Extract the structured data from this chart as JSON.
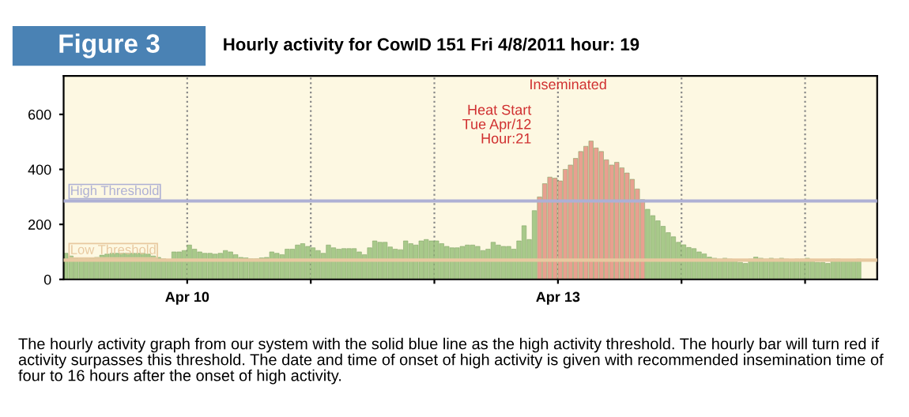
{
  "chart_data": {
    "type": "bar",
    "title": "Figure 3",
    "subtitle": "Hourly activity for CowID 151 Fri 4/8/2011 hour: 19",
    "x": [
      "2011-04-09T00:00",
      "2011-04-09T01:00",
      "2011-04-09T02:00",
      "2011-04-09T03:00",
      "2011-04-09T04:00",
      "2011-04-09T05:00",
      "2011-04-09T06:00",
      "2011-04-09T07:00",
      "2011-04-09T08:00",
      "2011-04-09T09:00",
      "2011-04-09T10:00",
      "2011-04-09T11:00",
      "2011-04-09T12:00",
      "2011-04-09T13:00",
      "2011-04-09T14:00",
      "2011-04-09T15:00",
      "2011-04-09T16:00",
      "2011-04-09T17:00",
      "2011-04-09T18:00",
      "2011-04-09T19:00",
      "2011-04-09T20:00",
      "2011-04-09T21:00",
      "2011-04-09T22:00",
      "2011-04-09T23:00",
      "2011-04-10T00:00",
      "2011-04-10T01:00",
      "2011-04-10T02:00",
      "2011-04-10T03:00",
      "2011-04-10T04:00",
      "2011-04-10T05:00",
      "2011-04-10T06:00",
      "2011-04-10T07:00",
      "2011-04-10T08:00",
      "2011-04-10T09:00",
      "2011-04-10T10:00",
      "2011-04-10T11:00",
      "2011-04-10T12:00",
      "2011-04-10T13:00",
      "2011-04-10T14:00",
      "2011-04-10T15:00",
      "2011-04-10T16:00",
      "2011-04-10T17:00",
      "2011-04-10T18:00",
      "2011-04-10T19:00",
      "2011-04-10T20:00",
      "2011-04-10T21:00",
      "2011-04-10T22:00",
      "2011-04-10T23:00",
      "2011-04-11T00:00",
      "2011-04-11T01:00",
      "2011-04-11T02:00",
      "2011-04-11T03:00",
      "2011-04-11T04:00",
      "2011-04-11T05:00",
      "2011-04-11T06:00",
      "2011-04-11T07:00",
      "2011-04-11T08:00",
      "2011-04-11T09:00",
      "2011-04-11T10:00",
      "2011-04-11T11:00",
      "2011-04-11T12:00",
      "2011-04-11T13:00",
      "2011-04-11T14:00",
      "2011-04-11T15:00",
      "2011-04-11T16:00",
      "2011-04-11T17:00",
      "2011-04-11T18:00",
      "2011-04-11T19:00",
      "2011-04-11T20:00",
      "2011-04-11T21:00",
      "2011-04-11T22:00",
      "2011-04-11T23:00",
      "2011-04-12T00:00",
      "2011-04-12T01:00",
      "2011-04-12T02:00",
      "2011-04-12T03:00",
      "2011-04-12T04:00",
      "2011-04-12T05:00",
      "2011-04-12T06:00",
      "2011-04-12T07:00",
      "2011-04-12T08:00",
      "2011-04-12T09:00",
      "2011-04-12T10:00",
      "2011-04-12T11:00",
      "2011-04-12T12:00",
      "2011-04-12T13:00",
      "2011-04-12T14:00",
      "2011-04-12T15:00",
      "2011-04-12T16:00",
      "2011-04-12T17:00",
      "2011-04-12T18:00",
      "2011-04-12T19:00",
      "2011-04-12T20:00",
      "2011-04-12T21:00",
      "2011-04-12T22:00",
      "2011-04-12T23:00",
      "2011-04-13T00:00",
      "2011-04-13T01:00",
      "2011-04-13T02:00",
      "2011-04-13T03:00",
      "2011-04-13T04:00",
      "2011-04-13T05:00",
      "2011-04-13T06:00",
      "2011-04-13T07:00",
      "2011-04-13T08:00",
      "2011-04-13T09:00",
      "2011-04-13T10:00",
      "2011-04-13T11:00",
      "2011-04-13T12:00",
      "2011-04-13T13:00",
      "2011-04-13T14:00",
      "2011-04-13T15:00",
      "2011-04-13T16:00",
      "2011-04-13T17:00",
      "2011-04-13T18:00",
      "2011-04-13T19:00",
      "2011-04-13T20:00",
      "2011-04-13T21:00",
      "2011-04-13T22:00",
      "2011-04-13T23:00",
      "2011-04-14T00:00",
      "2011-04-14T01:00",
      "2011-04-14T02:00",
      "2011-04-14T03:00",
      "2011-04-14T04:00",
      "2011-04-14T05:00",
      "2011-04-14T06:00",
      "2011-04-14T07:00",
      "2011-04-14T08:00",
      "2011-04-14T09:00",
      "2011-04-14T10:00",
      "2011-04-14T11:00",
      "2011-04-14T12:00",
      "2011-04-14T13:00",
      "2011-04-14T14:00",
      "2011-04-14T15:00",
      "2011-04-14T16:00",
      "2011-04-14T17:00",
      "2011-04-14T18:00",
      "2011-04-14T19:00",
      "2011-04-14T20:00",
      "2011-04-14T21:00",
      "2011-04-14T22:00",
      "2011-04-14T23:00",
      "2011-04-15T00:00",
      "2011-04-15T01:00",
      "2011-04-15T02:00",
      "2011-04-15T03:00",
      "2011-04-15T04:00",
      "2011-04-15T05:00",
      "2011-04-15T06:00",
      "2011-04-15T07:00",
      "2011-04-15T08:00",
      "2011-04-15T09:00",
      "2011-04-15T10:00"
    ],
    "series": [
      {
        "color": "#a8c98a",
        "values": [
          95,
          85,
          78,
          75,
          75,
          78,
          80,
          88,
          92,
          95,
          95,
          95,
          95,
          95,
          95,
          95,
          92,
          85,
          80,
          75,
          72,
          100,
          100,
          105,
          125,
          110,
          100,
          95,
          95,
          92,
          95,
          105,
          100,
          90,
          80,
          78,
          75,
          75,
          78,
          80,
          100,
          95,
          90,
          110,
          110,
          125,
          130,
          120,
          115,
          105,
          95,
          125,
          115,
          110,
          112,
          112,
          112,
          100,
          90,
          115,
          140,
          135,
          135,
          118,
          110,
          108,
          140,
          130,
          125,
          140,
          145,
          140,
          140,
          130,
          120,
          115,
          115,
          120,
          125,
          125,
          120,
          105,
          110,
          135,
          125,
          120,
          120,
          110,
          140,
          195,
          145,
          250,
          null,
          null,
          null,
          null,
          null,
          null,
          null,
          null,
          null,
          null,
          null,
          null,
          null,
          null,
          null,
          null,
          null,
          null,
          null,
          null,
          null,
          255,
          232,
          213,
          193,
          170,
          155,
          135,
          126,
          116,
          112,
          100,
          93,
          81,
          77,
          74,
          77,
          74,
          68,
          62,
          58,
          74,
          81,
          77,
          74,
          77,
          74,
          77,
          74,
          68,
          74,
          74,
          77,
          68,
          62,
          62,
          58,
          74,
          74,
          72,
          68,
          72,
          74
        ]
      },
      {
        "color": "#e8a090",
        "x": [
          "2011-04-12T20:00",
          "2011-04-12T21:00",
          "2011-04-12T22:00",
          "2011-04-12T23:00",
          "2011-04-13T00:00",
          "2011-04-13T01:00",
          "2011-04-13T02:00",
          "2011-04-13T03:00",
          "2011-04-13T04:00",
          "2011-04-13T05:00",
          "2011-04-13T06:00",
          "2011-04-13T07:00",
          "2011-04-13T08:00",
          "2011-04-13T09:00",
          "2011-04-13T10:00",
          "2011-04-13T11:00",
          "2011-04-13T12:00",
          "2011-04-13T13:00",
          "2011-04-13T14:00",
          "2011-04-13T15:00",
          "2011-04-13T16:00"
        ],
        "values": [
          300,
          348,
          372,
          368,
          358,
          400,
          416,
          440,
          465,
          484,
          503,
          478,
          465,
          435,
          416,
          426,
          406,
          387,
          364,
          329,
          290
        ]
      }
    ],
    "xlim": [
      "2011-04-09T00:00",
      "2011-04-15T14:00"
    ],
    "xticks": [
      {
        "value": "2011-04-10",
        "label": "Apr 10"
      },
      {
        "value": "2011-04-11",
        "label": null
      },
      {
        "value": "2011-04-12",
        "label": null
      },
      {
        "value": "2011-04-13",
        "label": "Apr 13"
      },
      {
        "value": "2011-04-14",
        "label": null
      },
      {
        "value": "2011-04-15",
        "label": null
      }
    ],
    "ylim": [
      0,
      740
    ],
    "yticks": [
      0,
      200,
      400,
      600
    ],
    "grid": "x",
    "ref_lines": [
      {
        "axis": "y",
        "value": 285,
        "label": "High Threshold",
        "color": "#aeb0d4"
      },
      {
        "axis": "y",
        "value": 70,
        "label": "Low Threshold",
        "color": "#e8c9a0"
      }
    ],
    "annotations": [
      "Heat Start\nTue Apr/12\nHour:21",
      "Inseminated",
      "The hourly activity graph from our system with the solid blue line as the high activity threshold. The hourly bar will turn red if activity surpasses this threshold. The date and time of onset of high activity is given with recommended insemination time of four to 16 hours after the onset of high activity."
    ]
  }
}
